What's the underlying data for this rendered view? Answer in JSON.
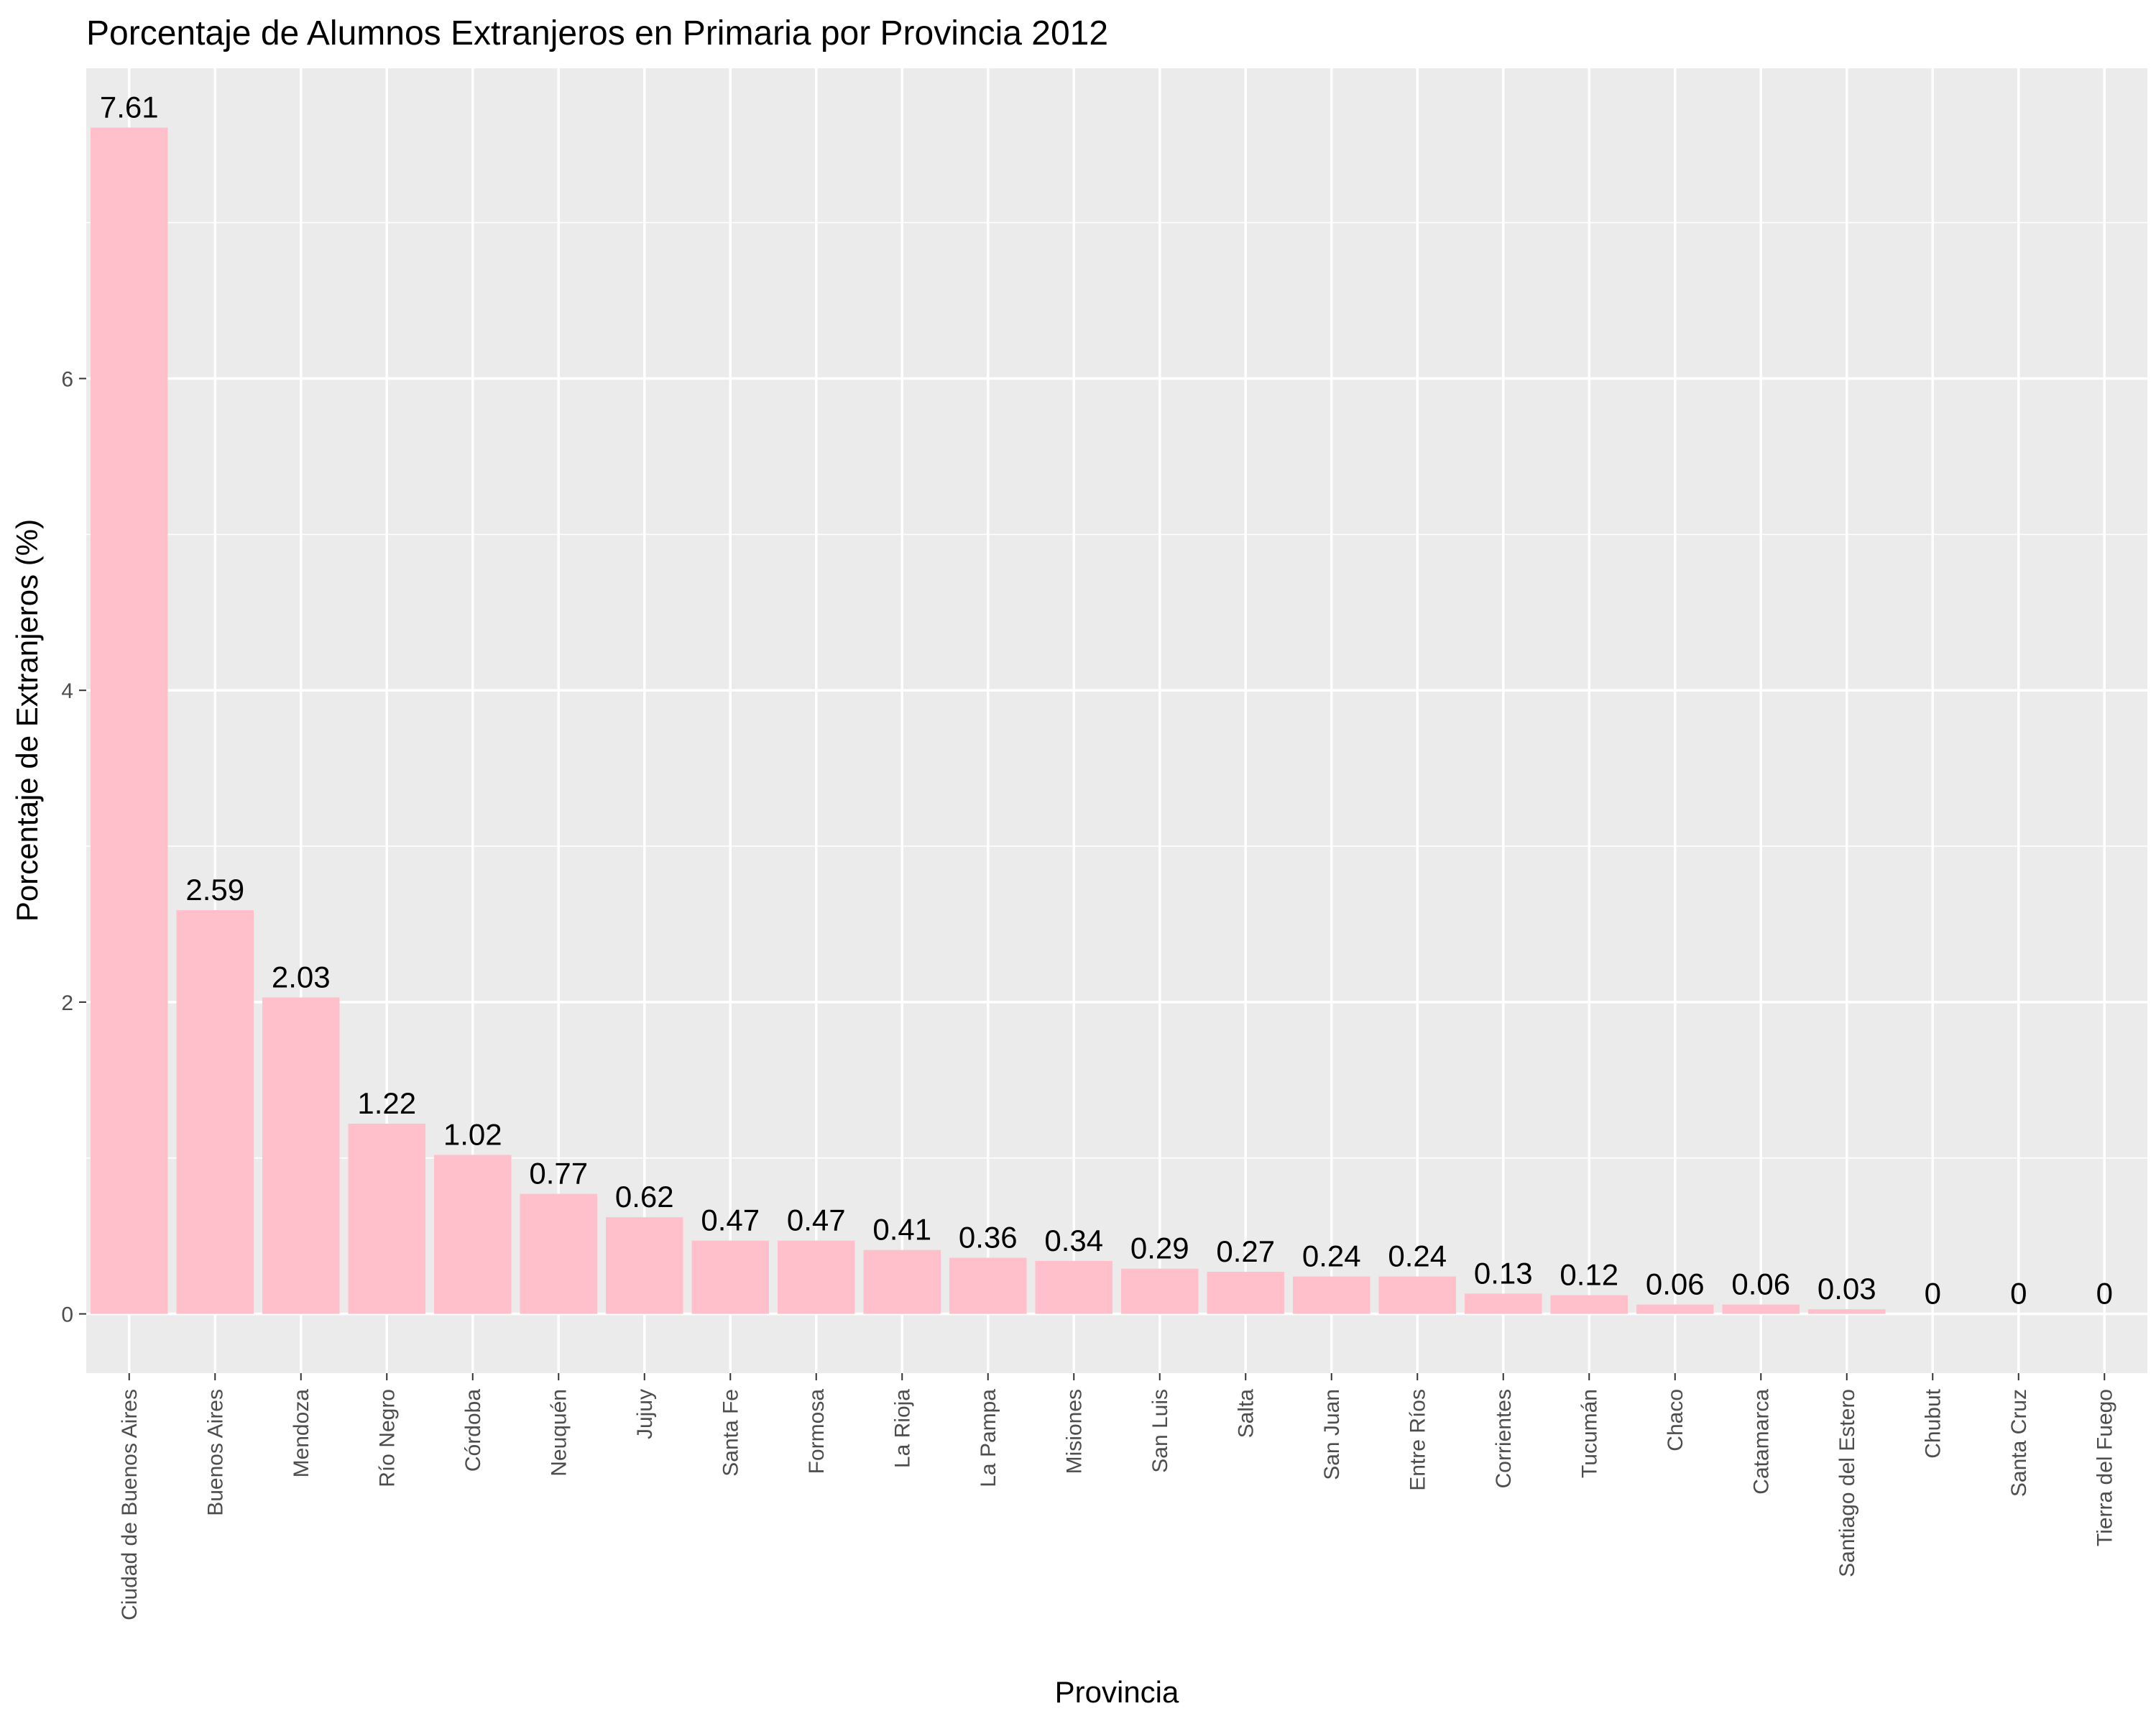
{
  "chart_data": {
    "type": "bar",
    "title": "Porcentaje de Alumnos Extranjeros en Primaria por Provincia 2012",
    "xlabel": "Provincia",
    "ylabel": "Porcentaje de Extranjeros (%)",
    "categories": [
      "Ciudad de Buenos Aires",
      "Buenos Aires",
      "Mendoza",
      "Río Negro",
      "Córdoba",
      "Neuquén",
      "Jujuy",
      "Santa Fe",
      "Formosa",
      "La Rioja",
      "La Pampa",
      "Misiones",
      "San Luis",
      "Salta",
      "San Juan",
      "Entre Ríos",
      "Corrientes",
      "Tucumán",
      "Chaco",
      "Catamarca",
      "Santiago del Estero",
      "Chubut",
      "Santa Cruz",
      "Tierra del Fuego"
    ],
    "values": [
      7.61,
      2.59,
      2.03,
      1.22,
      1.02,
      0.77,
      0.62,
      0.47,
      0.47,
      0.41,
      0.36,
      0.34,
      0.29,
      0.27,
      0.24,
      0.24,
      0.13,
      0.12,
      0.06,
      0.06,
      0.03,
      0,
      0,
      0
    ],
    "value_labels": [
      "7.61",
      "2.59",
      "2.03",
      "1.22",
      "1.02",
      "0.77",
      "0.62",
      "0.47",
      "0.47",
      "0.41",
      "0.36",
      "0.34",
      "0.29",
      "0.27",
      "0.24",
      "0.24",
      "0.13",
      "0.12",
      "0.06",
      "0.06",
      "0.03",
      "0",
      "0",
      "0"
    ],
    "yticks": [
      0,
      2,
      4,
      6
    ],
    "ylim": [
      -0.38,
      7.99
    ],
    "grid": true,
    "legend": "none",
    "colors": {
      "bar": "#FFC0CB",
      "panel": "#EBEBEB",
      "grid": "#FFFFFF",
      "tick_label": "#4D4D4D",
      "tick_mark": "#333333"
    }
  }
}
